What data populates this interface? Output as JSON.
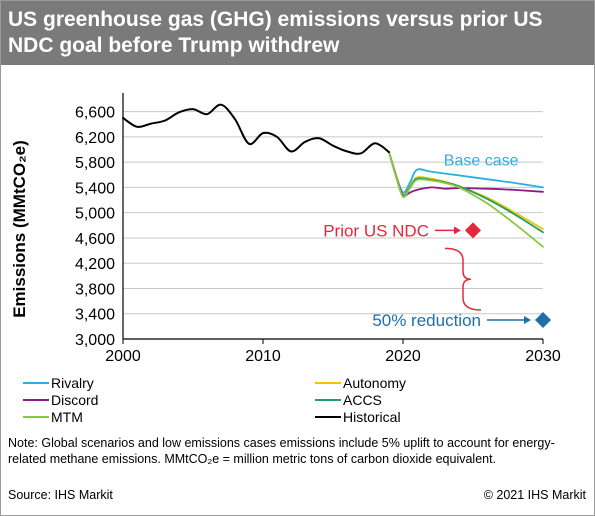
{
  "title": "US greenhouse gas (GHG) emissions versus prior US NDC goal before Trump withdrew",
  "note": "Note: Global scenarios and low emissions cases emissions include 5% uplift to account for energy-related methane emissions. MMtCO₂e =  million metric tons of carbon dioxide equivalent.",
  "source": "Source: IHS Markit",
  "copyright": "© 2021 IHS Markit",
  "colors": {
    "title_bar": "#7a7a7a",
    "prior_ndc": "#e5283c",
    "reduction": "#1f6fa8",
    "brace": "#e5283c"
  },
  "chart_data": {
    "type": "line",
    "title": "US greenhouse gas (GHG) emissions versus prior US NDC goal before Trump withdrew",
    "xlabel": "",
    "ylabel": "Emissions (MMtCO₂e)",
    "xlim": [
      2000,
      2030
    ],
    "ylim": [
      3000,
      6800
    ],
    "x_ticks": [
      2000,
      2010,
      2020,
      2030
    ],
    "y_ticks": [
      3000,
      3400,
      3800,
      4200,
      4600,
      5000,
      5400,
      5800,
      6200,
      6600
    ],
    "y_tick_labels": [
      "3,000",
      "3,400",
      "3,800",
      "4,200",
      "4,600",
      "5,000",
      "5,400",
      "5,800",
      "6,200",
      "6,600"
    ],
    "grid": "horizontal",
    "legend_position": "bottom",
    "series": [
      {
        "name": "Rivalry",
        "color": "#2eaee0",
        "points": [
          [
            2019,
            5960
          ],
          [
            2019.5,
            5600
          ],
          [
            2020,
            5320
          ],
          [
            2020.5,
            5480
          ],
          [
            2021,
            5680
          ],
          [
            2022,
            5650
          ],
          [
            2024,
            5590
          ],
          [
            2026,
            5530
          ],
          [
            2028,
            5470
          ],
          [
            2030,
            5400
          ]
        ]
      },
      {
        "name": "Autonomy",
        "color": "#f2c400",
        "points": [
          [
            2019,
            5960
          ],
          [
            2019.5,
            5600
          ],
          [
            2020,
            5280
          ],
          [
            2020.5,
            5420
          ],
          [
            2021,
            5560
          ],
          [
            2022,
            5540
          ],
          [
            2023,
            5490
          ],
          [
            2024,
            5420
          ],
          [
            2026,
            5240
          ],
          [
            2028,
            5000
          ],
          [
            2030,
            4740
          ]
        ]
      },
      {
        "name": "Discord",
        "color": "#8b1a8b",
        "points": [
          [
            2019,
            5960
          ],
          [
            2019.5,
            5580
          ],
          [
            2020,
            5280
          ],
          [
            2020.5,
            5320
          ],
          [
            2021,
            5360
          ],
          [
            2022,
            5400
          ],
          [
            2023,
            5380
          ],
          [
            2024,
            5390
          ],
          [
            2026,
            5380
          ],
          [
            2028,
            5360
          ],
          [
            2030,
            5330
          ]
        ]
      },
      {
        "name": "ACCS",
        "color": "#1f9e6e",
        "points": [
          [
            2019,
            5960
          ],
          [
            2019.5,
            5580
          ],
          [
            2020,
            5270
          ],
          [
            2020.5,
            5410
          ],
          [
            2021,
            5540
          ],
          [
            2022,
            5520
          ],
          [
            2023,
            5480
          ],
          [
            2024,
            5420
          ],
          [
            2026,
            5220
          ],
          [
            2028,
            4970
          ],
          [
            2030,
            4690
          ]
        ]
      },
      {
        "name": "MTM",
        "color": "#8cc63f",
        "points": [
          [
            2019,
            5960
          ],
          [
            2019.5,
            5570
          ],
          [
            2020,
            5250
          ],
          [
            2020.5,
            5390
          ],
          [
            2021,
            5520
          ],
          [
            2022,
            5510
          ],
          [
            2023,
            5470
          ],
          [
            2024,
            5400
          ],
          [
            2026,
            5150
          ],
          [
            2028,
            4820
          ],
          [
            2030,
            4460
          ]
        ]
      },
      {
        "name": "Historical",
        "color": "#000000",
        "points": [
          [
            2000,
            6500
          ],
          [
            2001,
            6360
          ],
          [
            2002,
            6410
          ],
          [
            2003,
            6460
          ],
          [
            2004,
            6590
          ],
          [
            2005,
            6640
          ],
          [
            2006,
            6560
          ],
          [
            2007,
            6710
          ],
          [
            2008,
            6480
          ],
          [
            2009,
            6090
          ],
          [
            2010,
            6260
          ],
          [
            2011,
            6200
          ],
          [
            2012,
            5970
          ],
          [
            2013,
            6120
          ],
          [
            2014,
            6180
          ],
          [
            2015,
            6060
          ],
          [
            2016,
            5970
          ],
          [
            2017,
            5940
          ],
          [
            2018,
            6100
          ],
          [
            2019,
            5960
          ]
        ]
      }
    ],
    "markers": [
      {
        "label": "Prior US NDC",
        "x": 2025,
        "y": 4720,
        "color": "#e5283c"
      },
      {
        "label": "50% reduction",
        "x": 2030,
        "y": 3300,
        "color": "#1f6fa8"
      }
    ],
    "annotations": [
      {
        "text": "Base case",
        "x": 2021.2,
        "y": 5700,
        "color": "#2eaee0"
      }
    ]
  },
  "legend": [
    {
      "label": "Rivalry",
      "color": "#2eaee0"
    },
    {
      "label": "Autonomy",
      "color": "#f2c400"
    },
    {
      "label": "Discord",
      "color": "#8b1a8b"
    },
    {
      "label": "ACCS",
      "color": "#1f9e6e"
    },
    {
      "label": "MTM",
      "color": "#8cc63f"
    },
    {
      "label": "Historical",
      "color": "#000000"
    }
  ]
}
